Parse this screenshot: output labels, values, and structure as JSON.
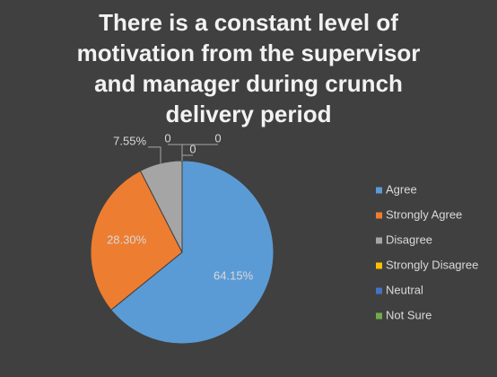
{
  "chart_data": {
    "type": "pie",
    "title": "There is a constant level of motivation from the supervisor and manager during crunch delivery period",
    "categories": [
      "Agree",
      "Strongly Agree",
      "Disagree",
      "Strongly Disagree",
      "Neutral",
      "Not Sure"
    ],
    "values": [
      64.15,
      28.3,
      7.55,
      0,
      0,
      0
    ],
    "value_labels": [
      "64.15%",
      "28.30%",
      "7.55%",
      "0",
      "0",
      "0"
    ],
    "colors": [
      "#5b9bd5",
      "#ed7d31",
      "#a5a5a5",
      "#ffc000",
      "#4472c4",
      "#70ad47"
    ],
    "legend": "right"
  }
}
